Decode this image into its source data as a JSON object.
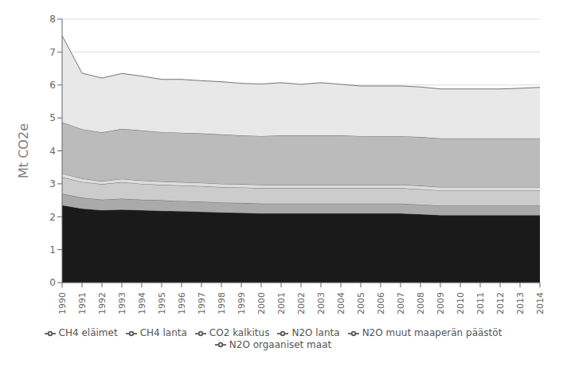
{
  "chart_data": {
    "type": "area",
    "stacked": true,
    "grid": true,
    "ylabel": "Mt CO2e",
    "x": [
      1990,
      1991,
      1992,
      1993,
      1994,
      1995,
      1996,
      1997,
      1998,
      1999,
      2000,
      2001,
      2002,
      2003,
      2004,
      2005,
      2006,
      2007,
      2008,
      2009,
      2010,
      2011,
      2012,
      2013,
      2014
    ],
    "xlim": [
      1990,
      2014
    ],
    "xticks": [
      1990,
      1991,
      1992,
      1993,
      1994,
      1995,
      1996,
      1997,
      1998,
      1999,
      2000,
      2001,
      2002,
      2003,
      2004,
      2005,
      2006,
      2007,
      2008,
      2009,
      2010,
      2011,
      2012,
      2013,
      2014
    ],
    "ylim": [
      0,
      8
    ],
    "yticks": [
      0,
      1,
      2,
      3,
      4,
      5,
      6,
      7,
      8
    ],
    "series": [
      {
        "name": "CH4 eläimet",
        "color": "#1a1a1a",
        "values": [
          2.35,
          2.25,
          2.2,
          2.22,
          2.2,
          2.18,
          2.17,
          2.15,
          2.13,
          2.12,
          2.1,
          2.1,
          2.1,
          2.1,
          2.1,
          2.1,
          2.1,
          2.1,
          2.08,
          2.05,
          2.05,
          2.05,
          2.05,
          2.05,
          2.05
        ]
      },
      {
        "name": "CH4 lanta",
        "color": "#aaaaaa",
        "values": [
          0.35,
          0.33,
          0.32,
          0.33,
          0.32,
          0.32,
          0.31,
          0.31,
          0.3,
          0.3,
          0.3,
          0.3,
          0.3,
          0.3,
          0.3,
          0.3,
          0.3,
          0.3,
          0.29,
          0.29,
          0.29,
          0.29,
          0.29,
          0.29,
          0.29
        ]
      },
      {
        "name": "N2O lanta",
        "color": "#cccccc",
        "values": [
          0.5,
          0.48,
          0.47,
          0.5,
          0.48,
          0.47,
          0.47,
          0.47,
          0.47,
          0.47,
          0.47,
          0.47,
          0.47,
          0.47,
          0.47,
          0.47,
          0.47,
          0.47,
          0.47,
          0.46,
          0.46,
          0.46,
          0.46,
          0.46,
          0.46
        ]
      },
      {
        "name": "CO2 kalkitus",
        "color": "#dddddd",
        "values": [
          0.12,
          0.1,
          0.09,
          0.1,
          0.1,
          0.1,
          0.1,
          0.1,
          0.1,
          0.1,
          0.1,
          0.1,
          0.1,
          0.1,
          0.1,
          0.1,
          0.1,
          0.1,
          0.1,
          0.1,
          0.1,
          0.1,
          0.1,
          0.1,
          0.1
        ]
      },
      {
        "name": "N2O orgaaniset maat",
        "color": "#bbbbbb",
        "values": [
          1.55,
          1.5,
          1.48,
          1.52,
          1.52,
          1.5,
          1.5,
          1.5,
          1.5,
          1.48,
          1.48,
          1.5,
          1.5,
          1.5,
          1.5,
          1.48,
          1.48,
          1.48,
          1.48,
          1.48,
          1.48,
          1.48,
          1.48,
          1.48,
          1.48
        ]
      },
      {
        "name": "N2O muut maaperän päästöt",
        "color": "#e8e8e8",
        "values": [
          2.63,
          1.7,
          1.65,
          1.68,
          1.65,
          1.6,
          1.62,
          1.6,
          1.6,
          1.58,
          1.58,
          1.6,
          1.55,
          1.6,
          1.55,
          1.52,
          1.52,
          1.52,
          1.52,
          1.5,
          1.5,
          1.5,
          1.5,
          1.52,
          1.55
        ]
      }
    ]
  }
}
